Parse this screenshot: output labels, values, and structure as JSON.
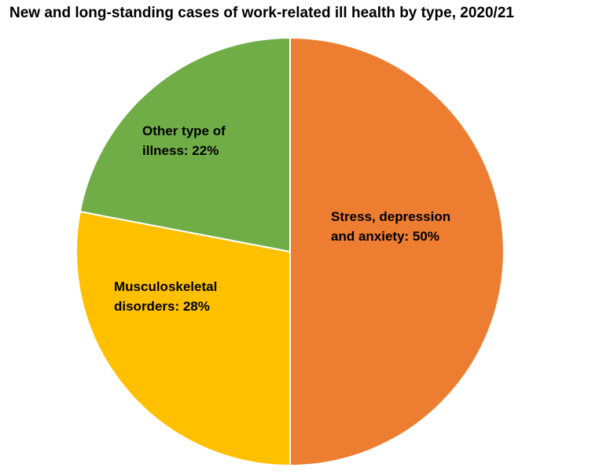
{
  "chart_data": {
    "type": "pie",
    "title": "New and long-standing cases of work-related ill health by type, 2020/21",
    "slices": [
      {
        "label_lines": [
          "Stress, depression",
          "and anxiety: 50%"
        ],
        "value": 50,
        "color": "#ED7D31"
      },
      {
        "label_lines": [
          "Musculoskeletal",
          "disorders: 28%"
        ],
        "value": 28,
        "color": "#FFC000"
      },
      {
        "label_lines": [
          "Other type of",
          "illness: 22%"
        ],
        "value": 22,
        "color": "#70AD47"
      }
    ],
    "start": "12 o'clock",
    "direction": "clockwise",
    "slice_border_color": "#FFFFFF",
    "legend": "none"
  }
}
